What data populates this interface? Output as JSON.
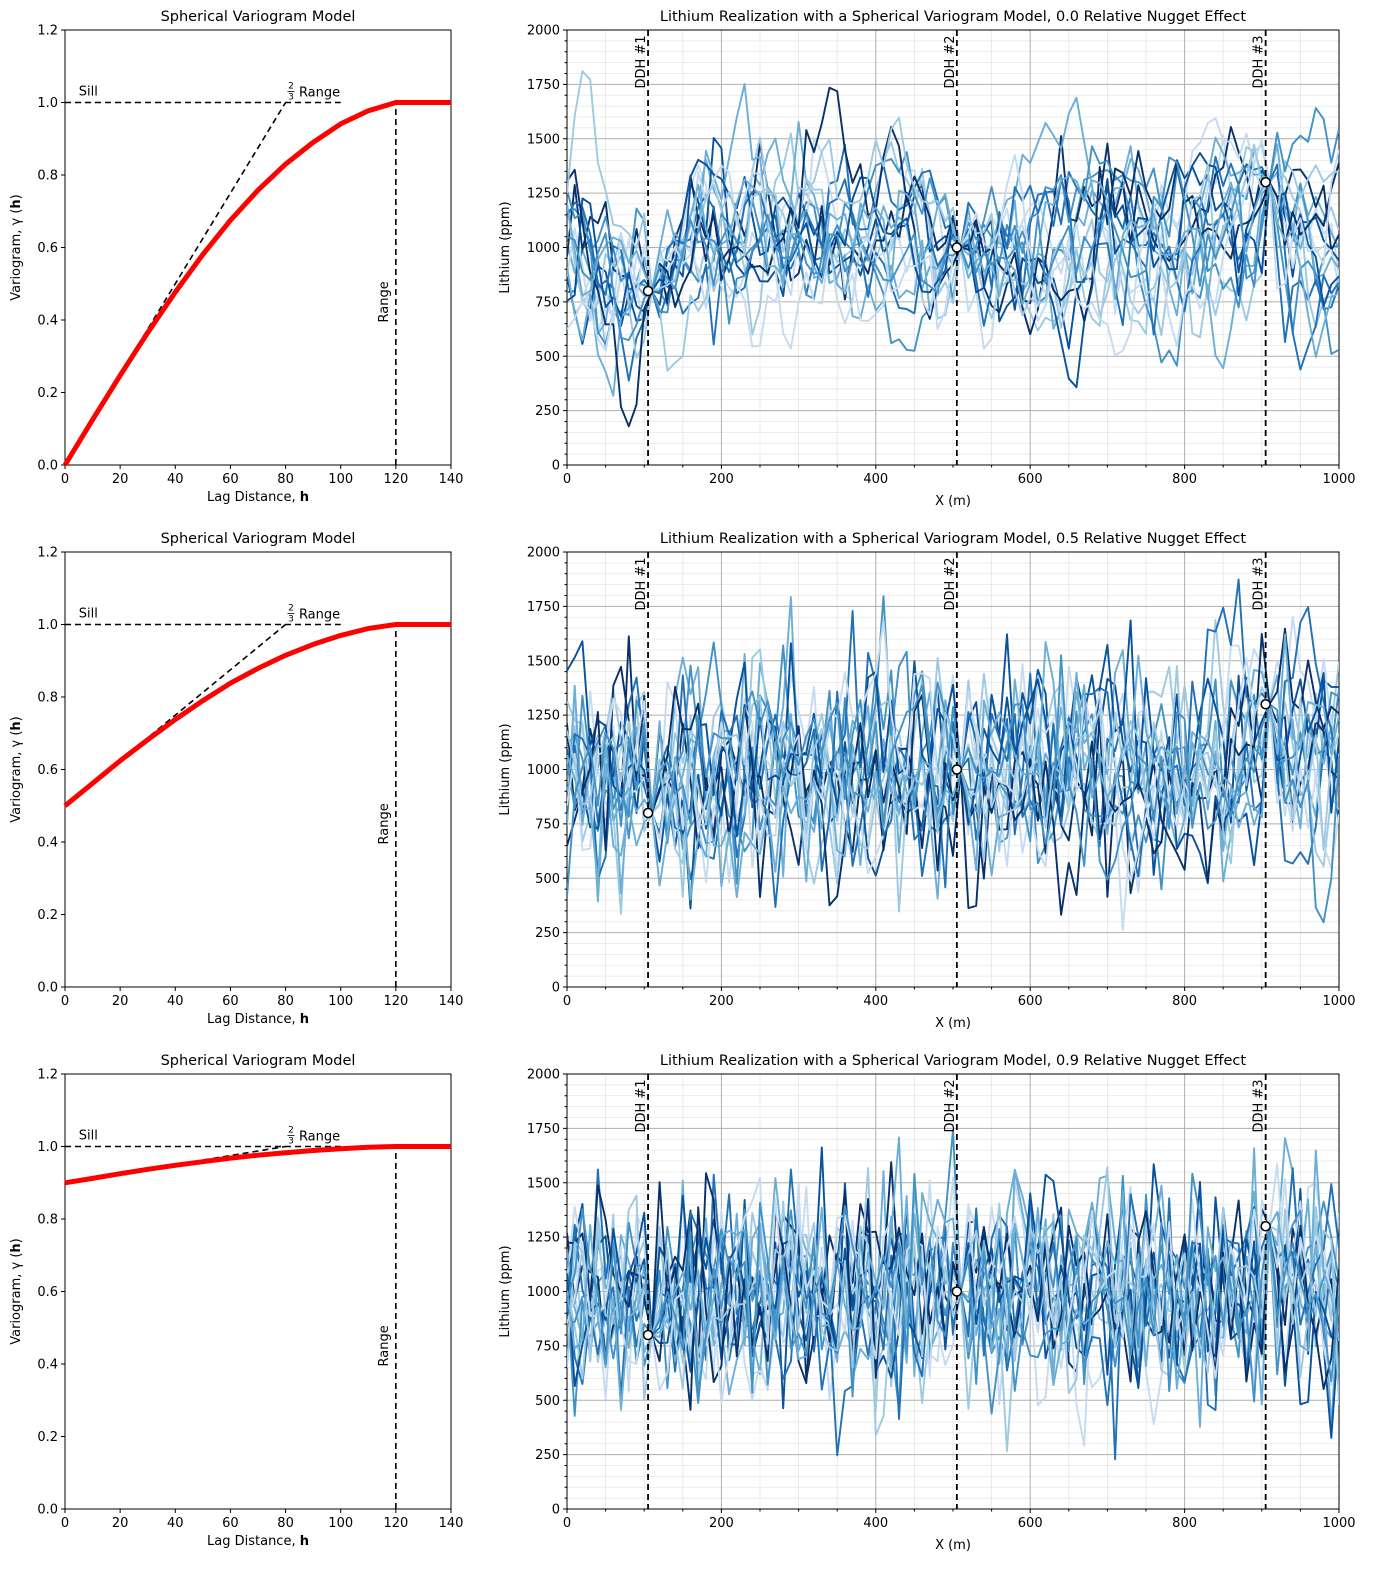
{
  "colors": {
    "variogram": "#ff0000",
    "reference": "#000000",
    "grid_major": "#b0b0b0",
    "grid_minor": "#e6e6e6",
    "palette": [
      "#c6dbef",
      "#9ecae1",
      "#6baed6",
      "#4292c6",
      "#2171b5",
      "#08519c",
      "#08306b"
    ]
  },
  "variogram_labels": {
    "sill": "Sill",
    "two_thirds_range_fraction_num": "2",
    "two_thirds_range_fraction_den": "3",
    "two_thirds_range_text": "Range",
    "range": "Range"
  },
  "realization_labels": {
    "wells": [
      "DDH #1",
      "DDH #2",
      "DDH #3"
    ]
  },
  "chart_data": [
    {
      "type": "line",
      "title": "Spherical Variogram Model",
      "xlabel_prefix": "Lag Distance, ",
      "xlabel_bold": "h",
      "ylabel_prefix": "Variogram, γ (",
      "ylabel_bold": "h",
      "ylabel_suffix": ")",
      "xlim": [
        0,
        140
      ],
      "ylim": [
        0,
        1.2
      ],
      "xticks": [
        "0",
        "20",
        "40",
        "60",
        "80",
        "100",
        "120",
        "140"
      ],
      "yticks": [
        "0.0",
        "0.2",
        "0.4",
        "0.6",
        "0.8",
        "1.0",
        "1.2"
      ],
      "nugget": 0.0,
      "sill": 1.0,
      "range": 120,
      "series": [
        {
          "x": [
            0,
            10,
            20,
            30,
            40,
            50,
            60,
            70,
            80,
            90,
            100,
            110,
            120,
            130,
            140
          ],
          "y": [
            0.0,
            0.125,
            0.247,
            0.365,
            0.477,
            0.581,
            0.675,
            0.758,
            0.83,
            0.89,
            0.941,
            0.977,
            1.0,
            1.0,
            1.0
          ]
        }
      ]
    },
    {
      "type": "line",
      "title": "Lithium Realization with a Spherical Variogram Model, 0.0 Relative Nugget Effect",
      "xlabel": "X (m)",
      "ylabel": "Lithium (ppm)",
      "xlim": [
        0,
        1000
      ],
      "ylim": [
        0,
        2000
      ],
      "xticks": [
        "0",
        "200",
        "400",
        "600",
        "800",
        "1000"
      ],
      "yticks": [
        "0",
        "250",
        "500",
        "750",
        "1000",
        "1250",
        "1500",
        "1750",
        "2000"
      ],
      "wells": [
        {
          "x": 105,
          "value": 800
        },
        {
          "x": 505,
          "value": 1000
        },
        {
          "x": 905,
          "value": 1300
        }
      ],
      "realizations": 18,
      "approx_range_ppm": [
        100,
        1850
      ]
    },
    {
      "type": "line",
      "title": "Spherical Variogram Model",
      "xlabel_prefix": "Lag Distance, ",
      "xlabel_bold": "h",
      "ylabel_prefix": "Variogram, γ (",
      "ylabel_bold": "h",
      "ylabel_suffix": ")",
      "xlim": [
        0,
        140
      ],
      "ylim": [
        0,
        1.2
      ],
      "xticks": [
        "0",
        "20",
        "40",
        "60",
        "80",
        "100",
        "120",
        "140"
      ],
      "yticks": [
        "0.0",
        "0.2",
        "0.4",
        "0.6",
        "0.8",
        "1.0",
        "1.2"
      ],
      "nugget": 0.5,
      "sill": 1.0,
      "range": 120,
      "series": [
        {
          "x": [
            0,
            10,
            20,
            30,
            40,
            50,
            60,
            70,
            80,
            90,
            100,
            110,
            120,
            130,
            140
          ],
          "y": [
            0.5,
            0.562,
            0.624,
            0.682,
            0.738,
            0.79,
            0.838,
            0.879,
            0.915,
            0.945,
            0.97,
            0.989,
            1.0,
            1.0,
            1.0
          ]
        }
      ]
    },
    {
      "type": "line",
      "title": "Lithium Realization with a Spherical Variogram Model, 0.5 Relative Nugget Effect",
      "xlabel": "X (m)",
      "ylabel": "Lithium (ppm)",
      "xlim": [
        0,
        1000
      ],
      "ylim": [
        0,
        2000
      ],
      "xticks": [
        "0",
        "200",
        "400",
        "600",
        "800",
        "1000"
      ],
      "yticks": [
        "0",
        "250",
        "500",
        "750",
        "1000",
        "1250",
        "1500",
        "1750",
        "2000"
      ],
      "wells": [
        {
          "x": 105,
          "value": 800
        },
        {
          "x": 505,
          "value": 1000
        },
        {
          "x": 905,
          "value": 1300
        }
      ],
      "realizations": 18,
      "approx_range_ppm": [
        380,
        1780
      ]
    },
    {
      "type": "line",
      "title": "Spherical Variogram Model",
      "xlabel_prefix": "Lag Distance, ",
      "xlabel_bold": "h",
      "ylabel_prefix": "Variogram, γ (",
      "ylabel_bold": "h",
      "ylabel_suffix": ")",
      "xlim": [
        0,
        140
      ],
      "ylim": [
        0,
        1.2
      ],
      "xticks": [
        "0",
        "20",
        "40",
        "60",
        "80",
        "100",
        "120",
        "140"
      ],
      "yticks": [
        "0.0",
        "0.2",
        "0.4",
        "0.6",
        "0.8",
        "1.0",
        "1.2"
      ],
      "nugget": 0.9,
      "sill": 1.0,
      "range": 120,
      "series": [
        {
          "x": [
            0,
            10,
            20,
            30,
            40,
            50,
            60,
            70,
            80,
            90,
            100,
            110,
            120,
            130,
            140
          ],
          "y": [
            0.9,
            0.912,
            0.925,
            0.937,
            0.948,
            0.958,
            0.968,
            0.976,
            0.983,
            0.989,
            0.994,
            0.998,
            1.0,
            1.0,
            1.0
          ]
        }
      ]
    },
    {
      "type": "line",
      "title": "Lithium Realization with a Spherical Variogram Model, 0.9 Relative Nugget Effect",
      "xlabel": "X (m)",
      "ylabel": "Lithium (ppm)",
      "xlim": [
        0,
        1000
      ],
      "ylim": [
        0,
        2000
      ],
      "xticks": [
        "0",
        "200",
        "400",
        "600",
        "800",
        "1000"
      ],
      "yticks": [
        "0",
        "250",
        "500",
        "750",
        "1000",
        "1250",
        "1500",
        "1750",
        "2000"
      ],
      "wells": [
        {
          "x": 105,
          "value": 800
        },
        {
          "x": 505,
          "value": 1000
        },
        {
          "x": 905,
          "value": 1300
        }
      ],
      "realizations": 18,
      "approx_range_ppm": [
        380,
        1570
      ]
    }
  ]
}
